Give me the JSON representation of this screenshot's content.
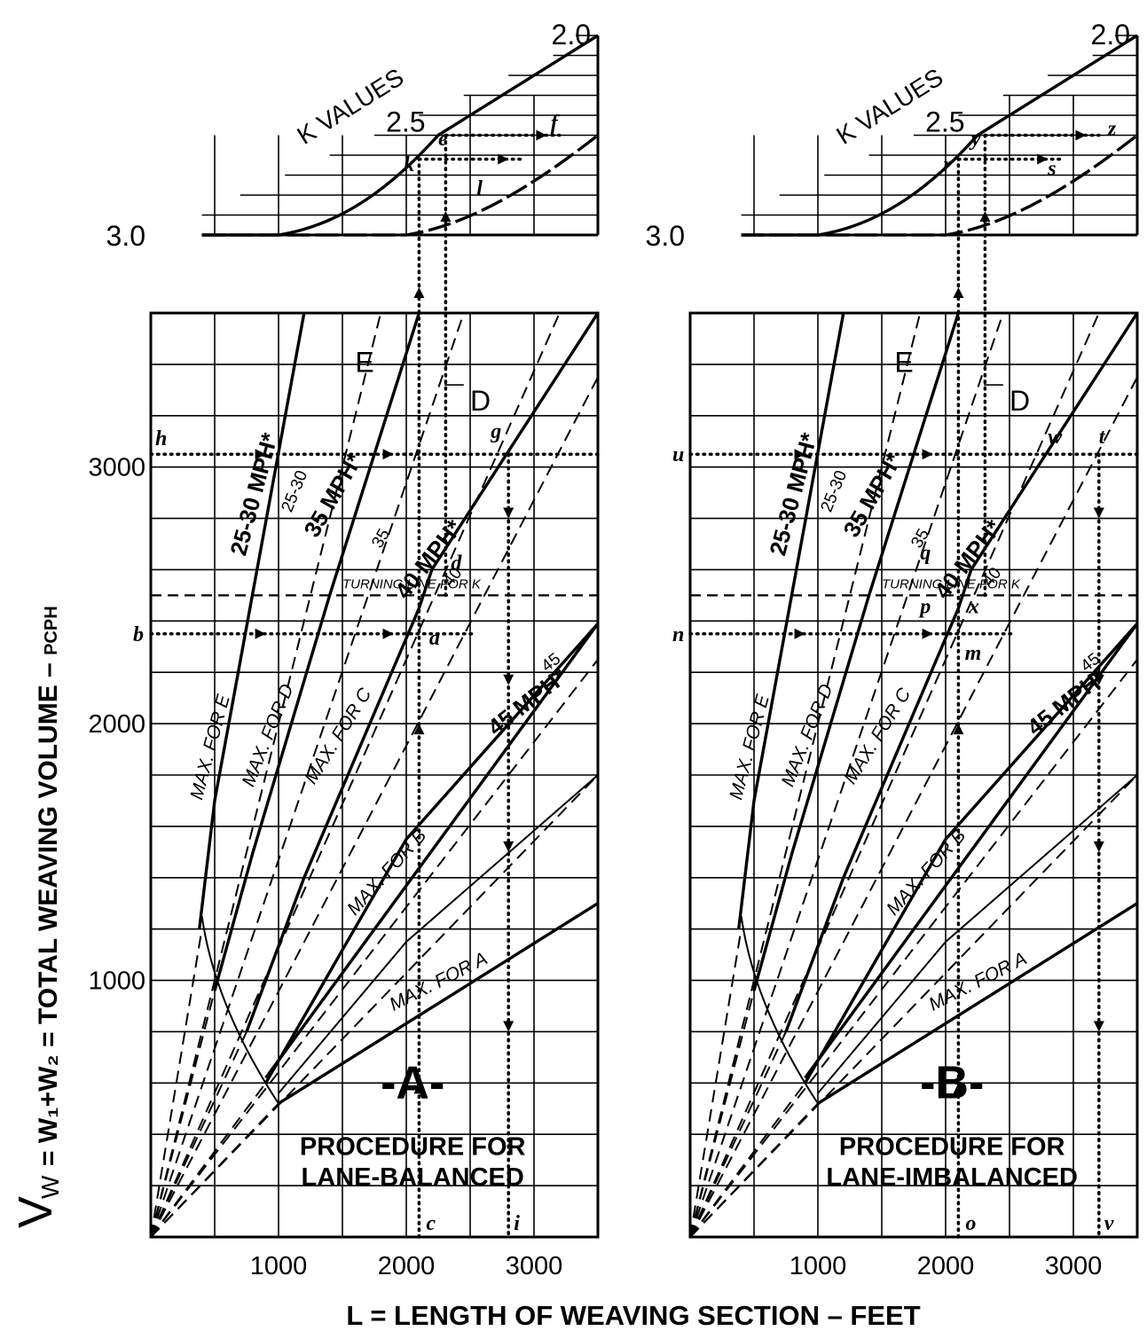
{
  "chart_data": {
    "type": "line",
    "ylabel": "= W₁+W₂ = TOTAL WEAVING VOLUME – PCPH",
    "ylabel_symbol": "V",
    "ylabel_sub": "W",
    "ylabel_unit": "PCPH",
    "xlabel": "L = LENGTH OF WEAVING SECTION – FEET",
    "x_ticks": [
      1000,
      2000,
      3000
    ],
    "y_ticks": [
      1000,
      2000,
      3000
    ],
    "turning_line_label": "TURNING LINE FOR K",
    "k_title": "K VALUES",
    "k_values": [
      "3.0",
      "2.5",
      "2.0"
    ],
    "level_labels": [
      "E",
      "D"
    ],
    "speed_labels": {
      "s25": "25-30 MPH*",
      "s35": "35 MPH*",
      "s40": "40 MPH*",
      "s45": "45 MPH*",
      "t25": "25-30",
      "t35": "35",
      "t40": "40",
      "t45": "45"
    },
    "max_labels": {
      "E": "MAX. FOR E",
      "D": "MAX. FOR D",
      "C": "MAX. FOR C",
      "B": "MAX. FOR B",
      "A": "MAX. FOR A"
    },
    "panels": [
      {
        "id": "A",
        "label": "-A-",
        "procedure_line1": "PROCEDURE FOR",
        "procedure_line2": "LANE-BALANCED",
        "points": {
          "h": "h",
          "b": "b",
          "a": "a",
          "d": "d",
          "g": "g",
          "c": "c",
          "i": "i",
          "e": "e",
          "f": "f",
          "k": "k",
          "l": "l"
        },
        "example": {
          "volume_low": 2350,
          "volume_high": 3050,
          "length_c": 2100,
          "length_i": 2800
        }
      },
      {
        "id": "B",
        "label": "-B-",
        "procedure_line1": "PROCEDURE FOR",
        "procedure_line2": "LANE-IMBALANCED",
        "points": {
          "u": "u",
          "n": "n",
          "p": "p",
          "m": "m",
          "q": "q",
          "x": "x",
          "w": "w",
          "t": "t",
          "o": "o",
          "v": "v",
          "y": "y",
          "z": "z",
          "r": "r",
          "s": "s"
        },
        "example": {
          "volume_low": 2350,
          "volume_high": 3050,
          "length_o": 2100,
          "length_v": 3200
        }
      }
    ],
    "x_range": [
      0,
      3500
    ],
    "y_range": [
      0,
      3600
    ],
    "curves_solid_boundaries": [
      {
        "name": "MAX. FOR E",
        "points": [
          [
            380,
            1200
          ],
          [
            500,
            1700
          ],
          [
            1200,
            3600
          ]
        ]
      },
      {
        "name": "MAX. FOR D",
        "points": [
          [
            500,
            960
          ],
          [
            800,
            1500
          ],
          [
            1400,
            2500
          ],
          [
            2100,
            3600
          ]
        ]
      },
      {
        "name": "MAX. FOR C",
        "points": [
          [
            750,
            800
          ],
          [
            1200,
            1400
          ],
          [
            2100,
            2450
          ],
          [
            2200,
            2600
          ],
          [
            3500,
            3600
          ]
        ]
      },
      {
        "name": "MAX. FOR B",
        "points": [
          [
            900,
            600
          ],
          [
            2000,
            1550
          ],
          [
            3500,
            2390
          ]
        ]
      },
      {
        "name": "MAX. FOR B (lower)",
        "points": [
          [
            1000,
            560
          ],
          [
            2000,
            1150
          ],
          [
            3500,
            1800
          ]
        ]
      },
      {
        "name": "MAX. FOR A",
        "points": [
          [
            1000,
            520
          ],
          [
            3500,
            1300
          ]
        ]
      }
    ],
    "k_curves": {
      "solid": [
        [
          400,
          3.0
        ],
        [
          1000,
          3.0
        ],
        [
          2250,
          2.5
        ],
        [
          3500,
          2.0
        ]
      ],
      "dashed": [
        [
          400,
          3.0
        ],
        [
          2000,
          3.0
        ],
        [
          3500,
          2.5
        ]
      ]
    },
    "grid": true
  }
}
